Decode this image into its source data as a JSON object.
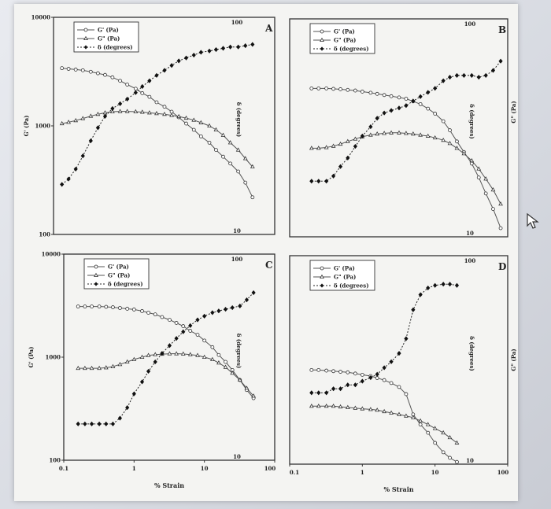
{
  "figure": {
    "x_axis_title": "% Strain",
    "left_axis_title": "G' (Pa)",
    "right_axis_title": "G\" (Pa)",
    "right_inner_axis_title": "δ (degrees)"
  },
  "chart_data": [
    {
      "type": "line",
      "panel": "A",
      "x_scale": "log",
      "xlim": [
        0.1,
        100
      ],
      "y_scale": "log",
      "ylim": [
        100,
        10000
      ],
      "y_tick_labels": [
        "10000",
        "1000",
        "100"
      ],
      "delta_axis": {
        "scale": "log",
        "range": [
          10,
          100
        ],
        "tick_labels": [
          "100",
          "10"
        ]
      },
      "legend": [
        "G' (Pa)",
        "G\" (Pa)",
        "δ (degrees)"
      ],
      "series": [
        {
          "name": "G' (Pa)",
          "x": [
            0.13,
            0.16,
            0.2,
            0.25,
            0.32,
            0.4,
            0.5,
            0.63,
            0.8,
            1,
            1.3,
            1.6,
            2,
            2.5,
            3.2,
            4,
            5,
            6.3,
            8,
            10,
            13,
            16,
            20,
            25,
            32,
            40,
            50
          ],
          "y": [
            3400,
            3350,
            3300,
            3250,
            3150,
            3050,
            2950,
            2800,
            2600,
            2400,
            2200,
            2000,
            1850,
            1650,
            1500,
            1350,
            1200,
            1050,
            920,
            800,
            700,
            600,
            520,
            450,
            380,
            300,
            220
          ]
        },
        {
          "name": "G\" (Pa)",
          "x": [
            0.13,
            0.16,
            0.2,
            0.25,
            0.32,
            0.4,
            0.5,
            0.63,
            0.8,
            1,
            1.3,
            1.6,
            2,
            2.5,
            3.2,
            4,
            5,
            6.3,
            8,
            10,
            13,
            16,
            20,
            25,
            32,
            40,
            50
          ],
          "y": [
            1050,
            1080,
            1120,
            1170,
            1230,
            1280,
            1320,
            1350,
            1360,
            1360,
            1350,
            1340,
            1320,
            1300,
            1280,
            1250,
            1220,
            1180,
            1130,
            1070,
            1000,
            920,
            820,
            700,
            600,
            500,
            420
          ]
        },
        {
          "name": "δ (degrees)",
          "x": [
            0.13,
            0.16,
            0.2,
            0.25,
            0.32,
            0.4,
            0.5,
            0.63,
            0.8,
            1,
            1.3,
            1.6,
            2,
            2.5,
            3.2,
            4,
            5,
            6.3,
            8,
            10,
            13,
            16,
            20,
            25,
            32,
            40,
            50
          ],
          "y": [
            17,
            18,
            20,
            23,
            27,
            31,
            35,
            38,
            40,
            42,
            45,
            48,
            51,
            54,
            57,
            60,
            63,
            65,
            67,
            69,
            70,
            71,
            72,
            73,
            73,
            74,
            75
          ]
        }
      ]
    },
    {
      "type": "line",
      "panel": "B",
      "x_scale": "log",
      "xlim": [
        0.1,
        100
      ],
      "y_scale": "log",
      "ylim": [
        100,
        10000
      ],
      "delta_axis": {
        "scale": "log",
        "range": [
          10,
          100
        ],
        "tick_labels": [
          "100",
          "10"
        ]
      },
      "legend": [
        "G' (Pa)",
        "G\" (Pa)",
        "δ (degrees)"
      ],
      "series": [
        {
          "name": "G' (Pa)",
          "x": [
            0.2,
            0.25,
            0.32,
            0.4,
            0.5,
            0.63,
            0.8,
            1,
            1.3,
            1.6,
            2,
            2.5,
            3.2,
            4,
            5,
            6.3,
            8,
            10,
            13,
            16,
            20,
            25,
            32,
            40,
            50,
            63,
            80
          ],
          "y": [
            2300,
            2300,
            2300,
            2280,
            2260,
            2230,
            2200,
            2150,
            2100,
            2050,
            2000,
            1950,
            1900,
            1850,
            1750,
            1650,
            1500,
            1350,
            1150,
            950,
            750,
            600,
            470,
            350,
            250,
            180,
            120
          ]
        },
        {
          "name": "G\" (Pa)",
          "x": [
            0.2,
            0.25,
            0.32,
            0.4,
            0.5,
            0.63,
            0.8,
            1,
            1.3,
            1.6,
            2,
            2.5,
            3.2,
            4,
            5,
            6.3,
            8,
            10,
            13,
            16,
            20,
            25,
            32,
            40,
            50,
            63,
            80
          ],
          "y": [
            650,
            650,
            660,
            680,
            710,
            750,
            790,
            830,
            860,
            880,
            890,
            900,
            900,
            890,
            880,
            860,
            840,
            810,
            770,
            720,
            650,
            580,
            500,
            420,
            340,
            270,
            200
          ]
        },
        {
          "name": "δ (degrees)",
          "x": [
            0.2,
            0.25,
            0.32,
            0.4,
            0.5,
            0.63,
            0.8,
            1,
            1.3,
            1.6,
            2,
            2.5,
            3.2,
            4,
            5,
            6.3,
            8,
            10,
            13,
            16,
            20,
            25,
            32,
            40,
            50,
            63,
            80
          ],
          "y": [
            18,
            18,
            18,
            19,
            21,
            23,
            26,
            29,
            32,
            35,
            37,
            38,
            39,
            40,
            42,
            44,
            46,
            48,
            52,
            54,
            55,
            55,
            55,
            54,
            55,
            58,
            64
          ]
        }
      ]
    },
    {
      "type": "line",
      "panel": "C",
      "x_scale": "log",
      "xlim": [
        0.1,
        100
      ],
      "x_tick_labels": [
        "0.1",
        "1",
        "10",
        "100"
      ],
      "y_scale": "log",
      "ylim": [
        100,
        10000
      ],
      "y_tick_labels": [
        "10000",
        "1000",
        "100"
      ],
      "delta_axis": {
        "scale": "log",
        "range": [
          10,
          100
        ],
        "tick_labels": [
          "100",
          "10"
        ]
      },
      "legend": [
        "G' (Pa)",
        "G\" (Pa)",
        "δ (degrees)"
      ],
      "series": [
        {
          "name": "G' (Pa)",
          "x": [
            0.16,
            0.2,
            0.25,
            0.32,
            0.4,
            0.5,
            0.63,
            0.8,
            1,
            1.3,
            1.6,
            2,
            2.5,
            3.2,
            4,
            5,
            6.3,
            8,
            10,
            13,
            16,
            20,
            25,
            32,
            40,
            50
          ],
          "y": [
            3100,
            3100,
            3100,
            3100,
            3080,
            3050,
            3000,
            2950,
            2900,
            2800,
            2700,
            2600,
            2450,
            2300,
            2150,
            2000,
            1800,
            1650,
            1450,
            1250,
            1050,
            900,
            750,
            600,
            480,
            400
          ]
        },
        {
          "name": "G\" (Pa)",
          "x": [
            0.16,
            0.2,
            0.25,
            0.32,
            0.4,
            0.5,
            0.63,
            0.8,
            1,
            1.3,
            1.6,
            2,
            2.5,
            3.2,
            4,
            5,
            6.3,
            8,
            10,
            13,
            16,
            20,
            25,
            32,
            40,
            50
          ],
          "y": [
            780,
            780,
            780,
            780,
            790,
            810,
            850,
            900,
            950,
            1000,
            1040,
            1060,
            1070,
            1080,
            1080,
            1075,
            1060,
            1040,
            1000,
            950,
            880,
            800,
            700,
            600,
            500,
            420
          ]
        },
        {
          "name": "δ (degrees)",
          "x": [
            0.16,
            0.2,
            0.25,
            0.32,
            0.4,
            0.5,
            0.63,
            0.8,
            1,
            1.3,
            1.6,
            2,
            2.5,
            3.2,
            4,
            5,
            6.3,
            8,
            10,
            13,
            16,
            20,
            25,
            32,
            40,
            50
          ],
          "y": [
            15,
            15,
            15,
            15,
            15,
            15,
            16,
            18,
            21,
            24,
            27,
            30,
            33,
            36,
            39,
            42,
            45,
            48,
            50,
            52,
            53,
            54,
            55,
            56,
            60,
            65
          ]
        }
      ]
    },
    {
      "type": "line",
      "panel": "D",
      "x_scale": "log",
      "xlim": [
        0.1,
        100
      ],
      "x_tick_labels": [
        "0.1",
        "1",
        "10",
        "100"
      ],
      "y_scale": "log",
      "ylim": [
        100,
        10000
      ],
      "delta_axis": {
        "scale": "log",
        "range": [
          10,
          100
        ],
        "tick_labels": [
          "100",
          "10"
        ]
      },
      "legend": [
        "G' (Pa)",
        "G\" (Pa)",
        "δ (degrees)"
      ],
      "series": [
        {
          "name": "G' (Pa)",
          "x": [
            0.2,
            0.25,
            0.32,
            0.4,
            0.5,
            0.63,
            0.8,
            1,
            1.3,
            1.6,
            2,
            2.5,
            3.2,
            4,
            5,
            6.3,
            8,
            10,
            13,
            16,
            20
          ],
          "y": [
            800,
            800,
            790,
            780,
            770,
            760,
            740,
            720,
            700,
            670,
            640,
            600,
            550,
            470,
            300,
            240,
            200,
            160,
            130,
            115,
            105
          ]
        },
        {
          "name": "G\" (Pa)",
          "x": [
            0.2,
            0.25,
            0.32,
            0.4,
            0.5,
            0.63,
            0.8,
            1,
            1.3,
            1.6,
            2,
            2.5,
            3.2,
            4,
            5,
            6.3,
            8,
            10,
            13,
            16,
            20
          ],
          "y": [
            360,
            360,
            360,
            360,
            355,
            350,
            345,
            340,
            335,
            330,
            320,
            310,
            300,
            290,
            280,
            260,
            240,
            220,
            200,
            180,
            160
          ]
        },
        {
          "name": "δ (degrees)",
          "x": [
            0.2,
            0.25,
            0.32,
            0.4,
            0.5,
            0.63,
            0.8,
            1,
            1.3,
            1.6,
            2,
            2.5,
            3.2,
            4,
            5,
            6.3,
            8,
            10,
            13,
            16,
            20
          ],
          "y": [
            22,
            22,
            22,
            23,
            23,
            24,
            24,
            25,
            26,
            27,
            29,
            31,
            34,
            40,
            55,
            65,
            70,
            72,
            73,
            73,
            72
          ]
        }
      ]
    }
  ]
}
